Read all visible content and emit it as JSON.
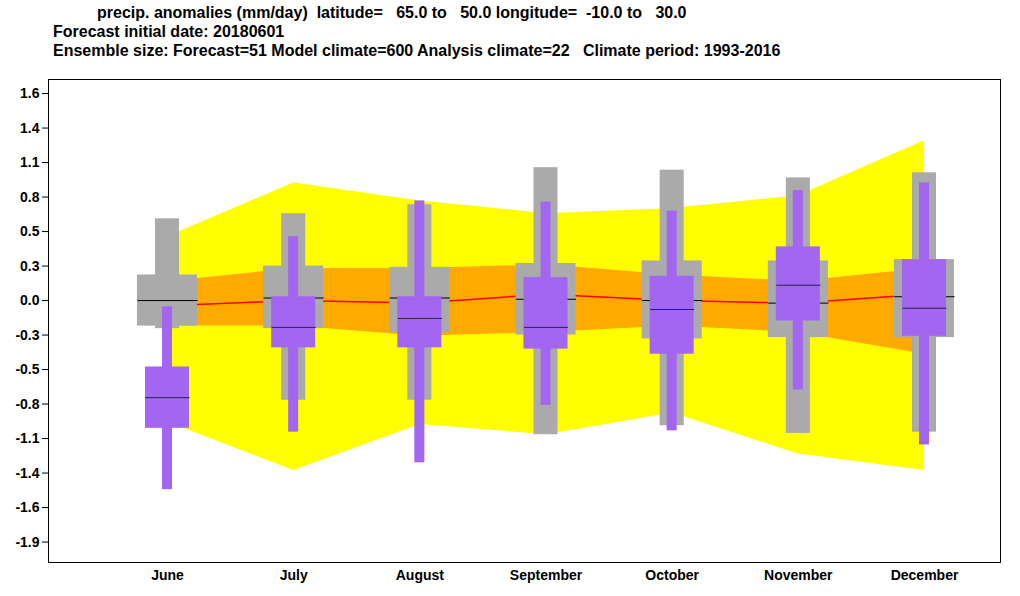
{
  "chart_data": {
    "type": "box",
    "title": "precip. anomalies (mm/day)  latitude=   65.0 to   50.0 longitude=  -10.0 to   30.0",
    "subtitle": [
      "Forecast initial date: 20180601",
      "Ensemble size: Forecast=51 Model climate=600 Analysis climate=22   Climate period: 1993-2016"
    ],
    "categories": [
      "June",
      "July",
      "August",
      "September",
      "October",
      "November",
      "December"
    ],
    "ylim": [
      -2.05,
      1.73
    ],
    "yticks": [
      {
        "value": 1.62,
        "label": "1.6"
      },
      {
        "value": 1.35,
        "label": "1.4"
      },
      {
        "value": 1.08,
        "label": "1.1"
      },
      {
        "value": 0.81,
        "label": "0.8"
      },
      {
        "value": 0.54,
        "label": "0.5"
      },
      {
        "value": 0.27,
        "label": "0.3"
      },
      {
        "value": 0,
        "label": "0.0"
      },
      {
        "value": -0.27,
        "label": "-0.3"
      },
      {
        "value": -0.54,
        "label": "-0.5"
      },
      {
        "value": -0.81,
        "label": "-0.8"
      },
      {
        "value": -1.08,
        "label": "-1.1"
      },
      {
        "value": -1.35,
        "label": "-1.4"
      },
      {
        "value": -1.62,
        "label": "-1.6"
      },
      {
        "value": -1.89,
        "label": "-1.9"
      }
    ],
    "grid": false,
    "series": [
      {
        "type": "area",
        "color": "#ffff00",
        "low": [
          -0.95,
          -1.33,
          -0.97,
          -1.05,
          -0.88,
          -1.2,
          -1.33
        ],
        "high": [
          0.5,
          0.92,
          0.78,
          0.68,
          0.72,
          0.82,
          1.25
        ]
      },
      {
        "type": "area",
        "color": "#ffaa00",
        "low": [
          -0.2,
          -0.2,
          -0.28,
          -0.25,
          -0.2,
          -0.25,
          -0.42
        ],
        "high": [
          0.15,
          0.25,
          0.25,
          0.28,
          0.2,
          0.15,
          0.25
        ]
      },
      {
        "type": "line",
        "color": "#ff0000",
        "values": [
          -0.04,
          0.0,
          -0.02,
          0.05,
          0.0,
          -0.02,
          0.05
        ]
      },
      {
        "type": "box",
        "color": "#aaaaaa",
        "min": [
          -0.22,
          -0.78,
          -0.78,
          -1.05,
          -0.98,
          -1.04,
          -1.03
        ],
        "q25": [
          -0.2,
          -0.22,
          -0.25,
          -0.27,
          -0.3,
          -0.29,
          -0.29
        ],
        "median": [
          0.0,
          0.02,
          0.02,
          0.01,
          0.0,
          -0.02,
          0.03
        ],
        "q75": [
          0.2,
          0.27,
          0.26,
          0.29,
          0.31,
          0.31,
          0.32
        ],
        "max": [
          0.64,
          0.68,
          0.75,
          1.04,
          1.02,
          0.96,
          1.0
        ]
      },
      {
        "type": "box",
        "color": "#a366f0",
        "min": [
          -1.48,
          -1.03,
          -1.27,
          -0.82,
          -1.02,
          -0.7,
          -1.13
        ],
        "q25": [
          -1.0,
          -0.37,
          -0.37,
          -0.38,
          -0.42,
          -0.16,
          -0.28
        ],
        "median": [
          -0.76,
          -0.21,
          -0.14,
          -0.21,
          -0.07,
          0.12,
          -0.06
        ],
        "q75": [
          -0.52,
          0.03,
          0.03,
          0.18,
          0.19,
          0.42,
          0.32
        ],
        "max": [
          -0.05,
          0.5,
          0.78,
          0.77,
          0.7,
          0.86,
          0.92
        ]
      }
    ]
  }
}
